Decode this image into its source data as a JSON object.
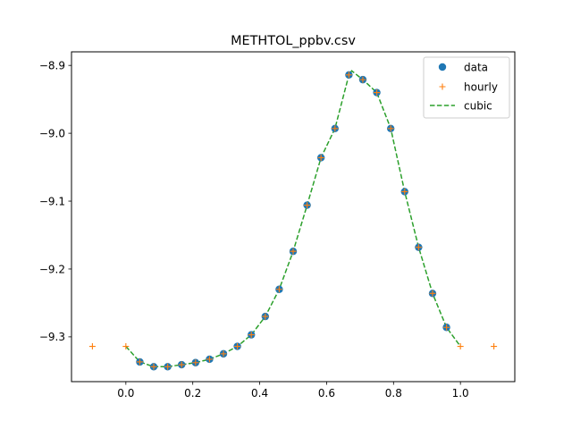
{
  "chart_data": {
    "type": "line",
    "title": "METHTOL_ppbv.csv",
    "xlabel": "",
    "ylabel": "",
    "xlim": [
      -0.1625,
      1.1625
    ],
    "ylim": [
      -9.366,
      -8.88
    ],
    "x_ticks": [
      0.0,
      0.2,
      0.4,
      0.6,
      0.8,
      1.0
    ],
    "x_tick_labels": [
      "0.0",
      "0.2",
      "0.4",
      "0.6",
      "0.8",
      "1.0"
    ],
    "y_ticks": [
      -8.9,
      -9.0,
      -9.1,
      -9.2,
      -9.3
    ],
    "y_tick_labels": [
      "−8.9",
      "−9.0",
      "−9.1",
      "−9.2",
      "−9.3"
    ],
    "grid": false,
    "legend_position": "top-right",
    "colors": {
      "data": "#1f77b4",
      "hourly": "#ff7f0e",
      "cubic": "#2ca02c"
    },
    "series": [
      {
        "name": "data",
        "style": "markers",
        "x": [
          0.0417,
          0.0833,
          0.125,
          0.1667,
          0.2083,
          0.25,
          0.2917,
          0.3333,
          0.375,
          0.4167,
          0.4583,
          0.5,
          0.5417,
          0.5833,
          0.625,
          0.6667,
          0.7083,
          0.75,
          0.7917,
          0.8333,
          0.875,
          0.9167,
          0.9583
        ],
        "y": [
          -9.337,
          -9.344,
          -9.344,
          -9.341,
          -9.338,
          -9.333,
          -9.325,
          -9.314,
          -9.297,
          -9.27,
          -9.23,
          -9.174,
          -9.106,
          -9.036,
          -8.993,
          -8.914,
          -8.921,
          -8.94,
          -8.993,
          -9.086,
          -9.168,
          -9.236,
          -9.286
        ]
      },
      {
        "name": "hourly",
        "style": "plus",
        "x": [
          -0.1,
          0.0,
          0.0417,
          0.0833,
          0.125,
          0.1667,
          0.2083,
          0.25,
          0.2917,
          0.3333,
          0.375,
          0.4167,
          0.4583,
          0.5,
          0.5417,
          0.5833,
          0.625,
          0.6667,
          0.7083,
          0.75,
          0.7917,
          0.8333,
          0.875,
          0.9167,
          0.9583,
          1.0,
          1.1
        ],
        "y": [
          -9.314,
          -9.314,
          -9.337,
          -9.344,
          -9.344,
          -9.341,
          -9.338,
          -9.333,
          -9.325,
          -9.314,
          -9.297,
          -9.27,
          -9.23,
          -9.174,
          -9.106,
          -9.036,
          -8.993,
          -8.914,
          -8.921,
          -8.94,
          -8.993,
          -9.086,
          -9.168,
          -9.236,
          -9.286,
          -9.314,
          -9.314
        ]
      },
      {
        "name": "cubic",
        "style": "dashed",
        "x": [
          0.0,
          0.0417,
          0.0833,
          0.125,
          0.1667,
          0.2083,
          0.25,
          0.2917,
          0.3333,
          0.375,
          0.4167,
          0.4583,
          0.5,
          0.5417,
          0.5833,
          0.625,
          0.6667,
          0.675,
          0.7083,
          0.75,
          0.7917,
          0.8333,
          0.875,
          0.9167,
          0.9583,
          1.0
        ],
        "y": [
          -9.314,
          -9.337,
          -9.344,
          -9.344,
          -9.341,
          -9.338,
          -9.333,
          -9.325,
          -9.314,
          -9.297,
          -9.27,
          -9.23,
          -9.174,
          -9.106,
          -9.036,
          -8.993,
          -8.914,
          -8.908,
          -8.921,
          -8.94,
          -8.993,
          -9.086,
          -9.168,
          -9.236,
          -9.286,
          -9.314
        ]
      }
    ]
  }
}
